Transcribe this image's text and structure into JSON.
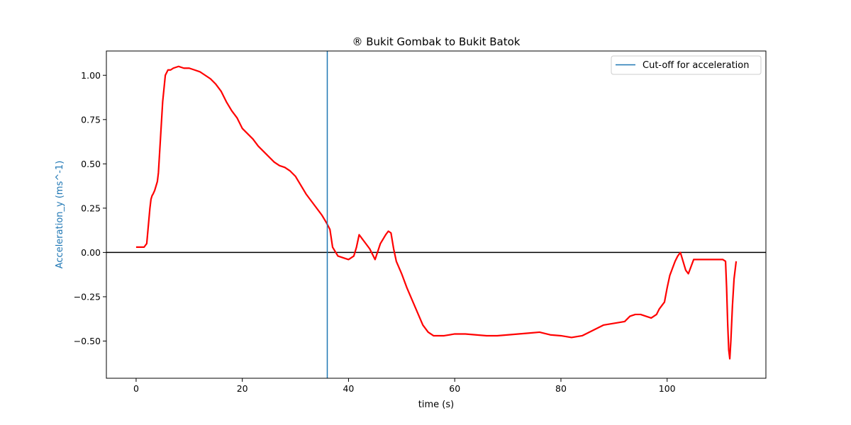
{
  "chart_data": {
    "type": "line",
    "title": "® Bukit Gombak to Bukit Batok",
    "xlabel": "time (s)",
    "ylabel": "Acceleration_y (ms^-1)",
    "xlim": [
      -5.6,
      118.6
    ],
    "ylim": [
      -0.71,
      1.137
    ],
    "x_ticks": [
      0,
      20,
      40,
      60,
      80,
      100
    ],
    "y_ticks": [
      -0.5,
      -0.25,
      0.0,
      0.25,
      0.5,
      0.75,
      1.0
    ],
    "x_tick_labels": [
      "0",
      "20",
      "40",
      "60",
      "80",
      "100"
    ],
    "y_tick_labels": [
      "−0.50",
      "−0.25",
      "0.00",
      "0.25",
      "0.50",
      "0.75",
      "1.00"
    ],
    "grid": false,
    "legend": {
      "placement": "top-right",
      "entries": [
        "Cut-off for acceleration"
      ]
    },
    "cutoff": {
      "name": "Cut-off for acceleration",
      "x": 36,
      "color": "#1f77b4"
    },
    "zero_line": {
      "y": 0,
      "color": "#000000"
    },
    "colors": {
      "series": "#ff0000",
      "ylabel": "#1f77b4"
    },
    "series": [
      {
        "color": "#ff0000",
        "x": [
          0,
          1.5,
          2.0,
          2.3,
          2.6,
          2.8,
          3.0,
          3.2,
          3.5,
          4.0,
          4.2,
          4.3,
          4.5,
          5.0,
          5.5,
          6.0,
          6.5,
          7.0,
          8.0,
          9.0,
          10.0,
          11.0,
          12.0,
          13.0,
          14.0,
          15.0,
          16.0,
          17.0,
          18.0,
          19.0,
          20.0,
          21.0,
          22.0,
          23.0,
          24.0,
          25.0,
          26.0,
          27.0,
          28.0,
          29.0,
          30.0,
          31.0,
          32.0,
          33.0,
          34.0,
          35.0,
          35.8,
          36.5,
          37.0,
          38.0,
          39.0,
          40.0,
          41.0,
          41.5,
          42.0,
          43.0,
          44.0,
          44.5,
          45.0,
          46.0,
          47.0,
          47.5,
          48.0,
          48.5,
          49.0,
          50.0,
          51.0,
          52.0,
          53.0,
          54.0,
          55.0,
          56.0,
          58.0,
          60.0,
          62.0,
          64.0,
          66.0,
          68.0,
          70.0,
          72.0,
          74.0,
          76.0,
          78.0,
          80.0,
          82.0,
          84.0,
          86.0,
          88.0,
          90.0,
          92.0,
          93.0,
          94.0,
          95.0,
          96.0,
          97.0,
          97.5,
          98.0,
          98.5,
          99.0,
          99.5,
          100.0,
          100.5,
          101.0,
          101.5,
          102.0,
          102.5,
          103.0,
          103.5,
          104.0,
          105.0,
          106.0,
          107.0,
          108.0,
          109.0,
          110.0,
          110.5,
          111.0,
          111.2,
          111.4,
          111.6,
          111.8,
          112.0,
          112.3,
          112.6,
          113.0
        ],
        "y": [
          0.03,
          0.03,
          0.05,
          0.15,
          0.25,
          0.3,
          0.32,
          0.33,
          0.35,
          0.4,
          0.45,
          0.5,
          0.6,
          0.85,
          1.0,
          1.03,
          1.03,
          1.04,
          1.05,
          1.04,
          1.04,
          1.03,
          1.02,
          1.0,
          0.98,
          0.95,
          0.91,
          0.85,
          0.8,
          0.76,
          0.7,
          0.67,
          0.64,
          0.6,
          0.57,
          0.54,
          0.51,
          0.49,
          0.48,
          0.46,
          0.43,
          0.38,
          0.33,
          0.29,
          0.25,
          0.21,
          0.17,
          0.13,
          0.03,
          -0.02,
          -0.03,
          -0.04,
          -0.02,
          0.03,
          0.1,
          0.06,
          0.02,
          -0.01,
          -0.04,
          0.05,
          0.1,
          0.12,
          0.11,
          0.02,
          -0.05,
          -0.12,
          -0.2,
          -0.27,
          -0.34,
          -0.41,
          -0.45,
          -0.47,
          -0.47,
          -0.46,
          -0.46,
          -0.465,
          -0.47,
          -0.47,
          -0.465,
          -0.46,
          -0.455,
          -0.45,
          -0.465,
          -0.47,
          -0.48,
          -0.47,
          -0.44,
          -0.41,
          -0.4,
          -0.39,
          -0.36,
          -0.35,
          -0.35,
          -0.36,
          -0.37,
          -0.36,
          -0.35,
          -0.32,
          -0.3,
          -0.28,
          -0.2,
          -0.13,
          -0.09,
          -0.05,
          -0.02,
          0.0,
          -0.05,
          -0.1,
          -0.12,
          -0.04,
          -0.04,
          -0.04,
          -0.04,
          -0.04,
          -0.04,
          -0.04,
          -0.05,
          -0.2,
          -0.4,
          -0.55,
          -0.6,
          -0.5,
          -0.3,
          -0.15,
          -0.05
        ]
      }
    ]
  }
}
